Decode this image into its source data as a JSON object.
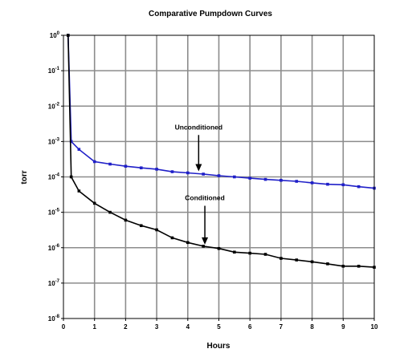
{
  "chart_data": {
    "type": "line",
    "title": "Comparative Pumpdown Curves",
    "xlabel": "Hours",
    "ylabel": "torr",
    "xlim": [
      0,
      10
    ],
    "ylim": [
      1e-08,
      1
    ],
    "yscale": "log",
    "grid": true,
    "x_ticks": [
      "0",
      "1",
      "2",
      "3",
      "4",
      "5",
      "6",
      "7",
      "8",
      "9",
      "10"
    ],
    "y_ticks": [
      {
        "base": "10",
        "exp": "0"
      },
      {
        "base": "10",
        "exp": "-1"
      },
      {
        "base": "10",
        "exp": "-2"
      },
      {
        "base": "10",
        "exp": "-3"
      },
      {
        "base": "10",
        "exp": "-4"
      },
      {
        "base": "10",
        "exp": "-5"
      },
      {
        "base": "10",
        "exp": "-6"
      },
      {
        "base": "10",
        "exp": "-7"
      },
      {
        "base": "10",
        "exp": "-8"
      }
    ],
    "series": [
      {
        "name": "Unconditioned",
        "color": "#1f1fc8",
        "x": [
          0.15,
          0.25,
          0.5,
          1,
          1.5,
          2,
          2.5,
          3,
          3.5,
          4,
          4.5,
          5,
          5.5,
          6,
          6.5,
          7,
          7.5,
          8,
          8.5,
          9,
          9.5,
          10
        ],
        "y": [
          1.0,
          0.001,
          0.0006,
          0.00027,
          0.00023,
          0.0002,
          0.00018,
          0.000165,
          0.00014,
          0.00013,
          0.00012,
          0.000108,
          0.0001,
          9.2e-05,
          8.5e-05,
          8e-05,
          7.5e-05,
          6.8e-05,
          6.2e-05,
          6e-05,
          5.3e-05,
          4.8e-05
        ]
      },
      {
        "name": "Conditioned",
        "color": "#000000",
        "x": [
          0.15,
          0.25,
          0.5,
          1,
          1.5,
          2,
          2.5,
          3,
          3.5,
          4,
          4.5,
          5,
          5.5,
          6,
          6.5,
          7,
          7.5,
          8,
          8.5,
          9,
          9.5,
          10
        ],
        "y": [
          1.0,
          0.0001,
          4e-05,
          1.8e-05,
          1e-05,
          6e-06,
          4.2e-06,
          3.2e-06,
          1.9e-06,
          1.4e-06,
          1.1e-06,
          9.5e-07,
          7.5e-07,
          7e-07,
          6.5e-07,
          5e-07,
          4.5e-07,
          4e-07,
          3.5e-07,
          3e-07,
          3e-07,
          2.8e-07
        ]
      }
    ],
    "annotations": [
      {
        "text": "Unconditioned",
        "target_x": 4.35,
        "target_y": 0.00013,
        "text_x": 4.35,
        "text_y": 0.0022
      },
      {
        "text": "Conditioned",
        "target_x": 4.55,
        "target_y": 1.1e-06,
        "text_x": 4.55,
        "text_y": 2.2e-05
      }
    ]
  }
}
